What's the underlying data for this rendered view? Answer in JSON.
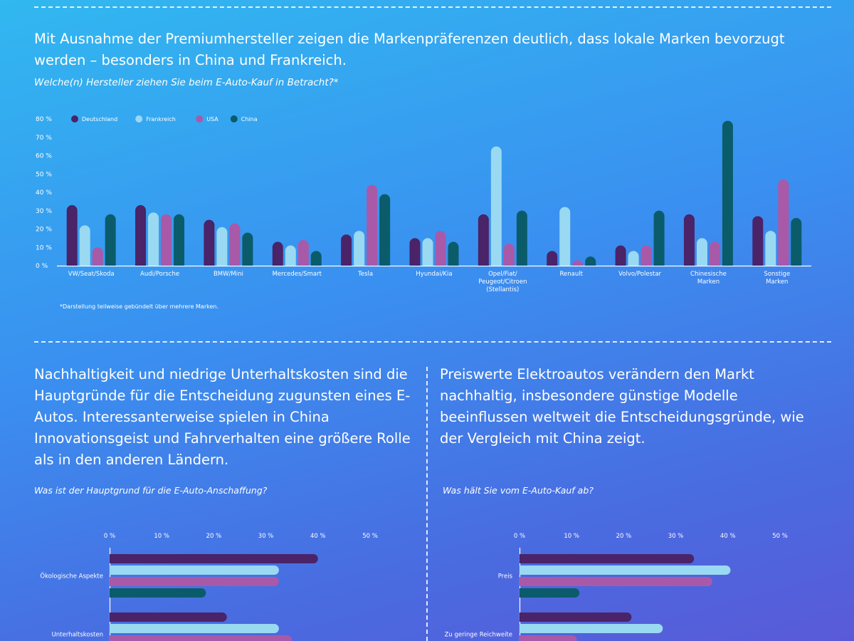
{
  "top": {
    "headline": "Mit Ausnahme der Premiumhersteller zeigen die Markenpräferenzen deutlich, dass lokale Marken bevorzugt werden – besonders in China und Frankreich.",
    "question": "Welche(n) Hersteller ziehen Sie beim E-Auto-Kauf in Betracht?*",
    "footnote": "*Darstellung teilweise gebündelt über mehrere Marken."
  },
  "left": {
    "headline": "Nachhaltigkeit und niedrige Unterhaltskosten sind die Hauptgründe für die Entscheidung zugunsten eines E-Autos. Interessanterweise spielen in China Innovationsgeist und Fahrverhalten eine größere Rolle als in den anderen Ländern.",
    "question": "Was ist der Hauptgrund für die E-Auto-Anschaffung?"
  },
  "right": {
    "headline": "Preiswerte Elektroautos verändern den Markt nachhaltig, insbesondere günstige Modelle beeinflussen weltweit die Entscheidungsgründe, wie der Vergleich mit China zeigt.",
    "question": "Was hält Sie vom E-Auto-Kauf ab?"
  },
  "colors": {
    "Deutschland": "#4a2368",
    "Frankreich": "#9ad9f2",
    "USA": "#a85aa8",
    "China": "#0a5c6a"
  },
  "chart_data": [
    {
      "id": "brands",
      "type": "bar",
      "categories": [
        "VW/Seat/Skoda",
        "Audi/Porsche",
        "BMW/Mini",
        "Mercedes/Smart",
        "Tesla",
        "Hyundai/Kia",
        "Opel/Fiat/ Peugeot/Citroen (Stellantis)",
        "Renault",
        "Volvo/Polestar",
        "Chinesische Marken",
        "Sonstige Marken"
      ],
      "category_lines": [
        [
          "VW/Seat/Skoda"
        ],
        [
          "Audi/Porsche"
        ],
        [
          "BMW/Mini"
        ],
        [
          "Mercedes/Smart"
        ],
        [
          "Tesla"
        ],
        [
          "Hyundai/Kia"
        ],
        [
          "Opel/Fiat/",
          "Peugeot/Citroen",
          "(Stellantis)"
        ],
        [
          "Renault"
        ],
        [
          "Volvo/Polestar"
        ],
        [
          "Chinesische",
          "Marken"
        ],
        [
          "Sonstige",
          "Marken"
        ]
      ],
      "series": [
        {
          "name": "Deutschland",
          "values": [
            33,
            33,
            25,
            13,
            17,
            15,
            28,
            8,
            11,
            28,
            27
          ]
        },
        {
          "name": "Frankreich",
          "values": [
            22,
            29,
            21,
            11,
            19,
            15,
            65,
            32,
            8,
            15,
            19
          ]
        },
        {
          "name": "USA",
          "values": [
            10,
            28,
            23,
            14,
            44,
            19,
            12,
            3,
            11,
            13,
            47
          ]
        },
        {
          "name": "China",
          "values": [
            28,
            28,
            18,
            8,
            39,
            13,
            30,
            5,
            30,
            79,
            26
          ]
        }
      ],
      "ylim": [
        0,
        80
      ],
      "yticks": [
        "0 %",
        "10 %",
        "20 %",
        "30 %",
        "40 %",
        "50 %",
        "60 %",
        "70 %",
        "80 %"
      ],
      "legend": "top-left"
    },
    {
      "id": "reasons",
      "type": "bar",
      "orientation": "horizontal",
      "categories": [
        "Ökologische Aspekte",
        "Unterhaltskosten"
      ],
      "series": [
        {
          "name": "Deutschland",
          "values": [
            40,
            22.5
          ]
        },
        {
          "name": "Frankreich",
          "values": [
            32.5,
            32.5
          ]
        },
        {
          "name": "USA",
          "values": [
            32.5,
            35
          ]
        },
        {
          "name": "China",
          "values": [
            18.5,
            null
          ]
        }
      ],
      "xlim": [
        0,
        50
      ],
      "xticks": [
        "0 %",
        "10 %",
        "20 %",
        "30 %",
        "40 %",
        "50 %"
      ]
    },
    {
      "id": "barriers",
      "type": "bar",
      "orientation": "horizontal",
      "categories": [
        "Preis",
        "Zu geringe Reichweite"
      ],
      "series": [
        {
          "name": "Deutschland",
          "values": [
            33.5,
            21.5
          ]
        },
        {
          "name": "Frankreich",
          "values": [
            40.5,
            27.5
          ]
        },
        {
          "name": "USA",
          "values": [
            37,
            11
          ]
        },
        {
          "name": "China",
          "values": [
            11.5,
            null
          ]
        }
      ],
      "xlim": [
        0,
        50
      ],
      "xticks": [
        "0 %",
        "10 %",
        "20 %",
        "30 %",
        "40 %",
        "50 %"
      ]
    }
  ]
}
